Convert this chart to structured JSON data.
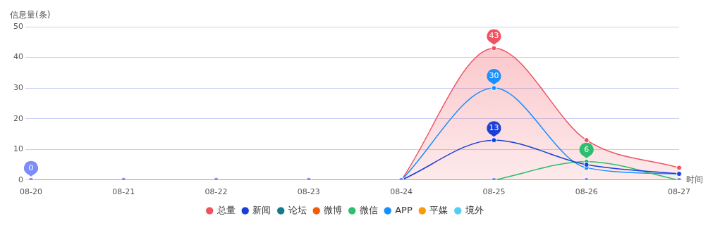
{
  "chart_data": {
    "type": "line",
    "ylabel": "信息量(条)",
    "xlabel": "时间",
    "categories": [
      "08-20",
      "08-21",
      "08-22",
      "08-23",
      "08-24",
      "08-25",
      "08-26",
      "08-27"
    ],
    "ylim": [
      0,
      50
    ],
    "yticks": [
      0,
      10,
      20,
      30,
      40,
      50
    ],
    "grid": "y",
    "legend": "bottom",
    "marker": "circle",
    "series": [
      {
        "name": "总量",
        "type": "area",
        "color": "#f0525f",
        "values": [
          null,
          null,
          null,
          null,
          0,
          43,
          13,
          4
        ]
      },
      {
        "name": "新闻",
        "color": "#1a3fd8",
        "values": [
          null,
          null,
          null,
          null,
          0,
          13,
          5,
          2
        ]
      },
      {
        "name": "论坛",
        "color": "#137b87",
        "values": [
          null,
          null,
          null,
          null,
          null,
          null,
          null,
          null
        ]
      },
      {
        "name": "微博",
        "color": "#f15c0c",
        "values": [
          null,
          null,
          null,
          null,
          null,
          null,
          null,
          null
        ]
      },
      {
        "name": "微信",
        "color": "#2dbe6e",
        "values": [
          null,
          null,
          null,
          null,
          null,
          0,
          6,
          0
        ]
      },
      {
        "name": "APP",
        "color": "#1890ff",
        "values": [
          null,
          null,
          null,
          null,
          0,
          30,
          4,
          2
        ]
      },
      {
        "name": "平媒",
        "color": "#f59a0a",
        "values": [
          null,
          null,
          null,
          null,
          null,
          null,
          null,
          null
        ]
      },
      {
        "name": "境外",
        "color": "#4fcff5",
        "values": [
          null,
          null,
          null,
          null,
          null,
          null,
          null,
          null
        ]
      },
      {
        "color": "#7c8cf8",
        "values": [
          0,
          0,
          0,
          0,
          0,
          0,
          0,
          0
        ]
      }
    ],
    "annotations": [
      {
        "text": "0",
        "x": "08-20",
        "y": 0
      },
      {
        "text": "43",
        "x": "08-25",
        "y": 43
      },
      {
        "text": "30",
        "x": "08-25",
        "y": 30
      },
      {
        "text": "13",
        "x": "08-25",
        "y": 13
      },
      {
        "text": "6",
        "x": "08-26",
        "y": 6
      }
    ]
  }
}
